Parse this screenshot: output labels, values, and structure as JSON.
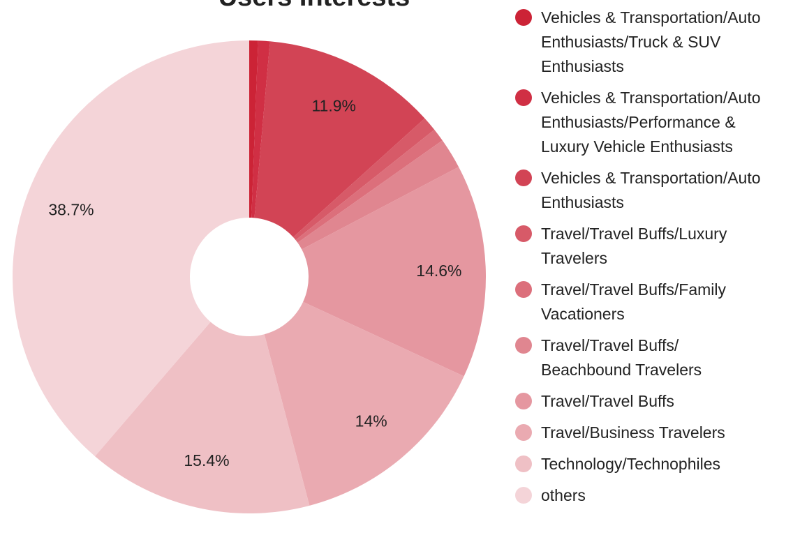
{
  "chart_data": {
    "type": "pie",
    "title": "Users Interests",
    "categories": [
      "Vehicles & Transportation/Auto Enthusiasts/Truck & SUV Enthusiasts",
      "Vehicles & Transportation/Auto Enthusiasts/Performance & Luxury Vehicle Enthusiasts",
      "Vehicles & Transportation/Auto Enthusiasts",
      "Travel/Travel Buffs/Luxury Travelers",
      "Travel/Travel Buffs/Family Vacationers",
      "Travel/Travel Buffs/Beachbound Travelers",
      "Travel/Travel Buffs",
      "Travel/Business Travelers",
      "Technology/Technophiles",
      "others"
    ],
    "values": [
      0.6,
      0.8,
      11.9,
      1.0,
      0.9,
      2.1,
      14.6,
      14,
      15.4,
      38.7
    ],
    "value_labels": [
      null,
      null,
      "11.9%",
      null,
      null,
      null,
      "14.6%",
      "14%",
      "15.4%",
      "38.7%"
    ],
    "colors": [
      "#cc2336",
      "#d02f44",
      "#d24455",
      "#d75a68",
      "#dc6f7b",
      "#e08690",
      "#e597a0",
      "#eaaab1",
      "#efc0c5",
      "#f4d4d8"
    ],
    "donut": true,
    "legend": "right"
  }
}
